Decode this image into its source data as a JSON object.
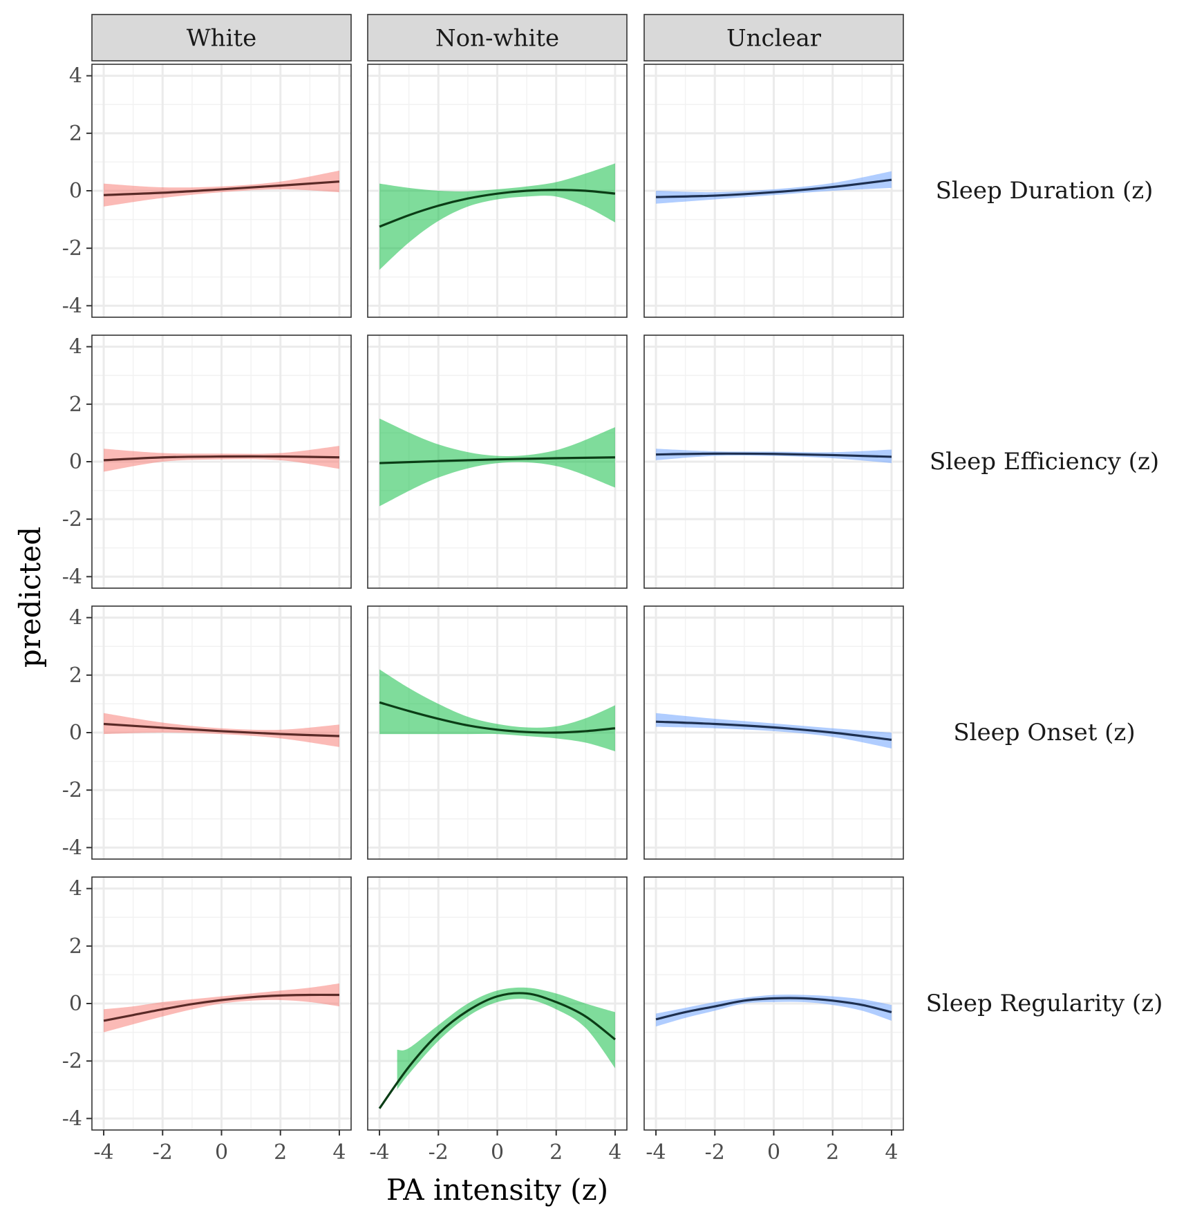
{
  "chart_data": {
    "type": "line",
    "xlabel": "PA intensity (z)",
    "ylabel": "predicted",
    "xlim": [
      -4.4,
      4.4
    ],
    "ylim": [
      -4.4,
      4.4
    ],
    "xticks": [
      -4,
      -2,
      0,
      2,
      4
    ],
    "yticks": [
      -4,
      -2,
      0,
      2,
      4
    ],
    "grid": true,
    "columns": [
      {
        "label": "White",
        "color": "#F8766D",
        "line_color": "#5a2a27"
      },
      {
        "label": "Non-white",
        "color": "#00BA38",
        "line_color": "#0b3d16"
      },
      {
        "label": "Unclear",
        "color": "#619CFF",
        "line_color": "#1e3050"
      }
    ],
    "rows": [
      "Sleep Duration (z)",
      "Sleep Efficiency (z)",
      "Sleep Onset (z)",
      "Sleep Regularity (z)"
    ],
    "panels": [
      [
        {
          "x": [
            -4,
            -2,
            0,
            2,
            4
          ],
          "y": [
            -0.15,
            -0.07,
            0.05,
            0.18,
            0.32
          ],
          "lower": [
            -0.55,
            -0.25,
            -0.05,
            0.05,
            -0.05
          ],
          "upper": [
            0.25,
            0.12,
            0.15,
            0.32,
            0.7
          ]
        },
        {
          "x": [
            -4,
            -3,
            -2,
            -1,
            0,
            1,
            2,
            3,
            4
          ],
          "y": [
            -1.25,
            -0.85,
            -0.52,
            -0.27,
            -0.1,
            0.0,
            0.03,
            0.0,
            -0.1
          ],
          "lower": [
            -2.75,
            -1.8,
            -1.05,
            -0.55,
            -0.3,
            -0.2,
            -0.2,
            -0.55,
            -1.1
          ],
          "upper": [
            0.25,
            0.1,
            0.0,
            -0.02,
            0.05,
            0.15,
            0.3,
            0.6,
            0.95
          ],
          "ci_x_start": -4
        },
        {
          "x": [
            -4,
            -2,
            0,
            2,
            4
          ],
          "y": [
            -0.22,
            -0.17,
            -0.05,
            0.13,
            0.38
          ],
          "lower": [
            -0.45,
            -0.3,
            -0.15,
            0.0,
            0.1
          ],
          "upper": [
            0.0,
            -0.05,
            0.05,
            0.27,
            0.68
          ]
        }
      ],
      [
        {
          "x": [
            -4,
            -2,
            0,
            2,
            4
          ],
          "y": [
            0.05,
            0.15,
            0.18,
            0.18,
            0.15
          ],
          "lower": [
            -0.35,
            0.0,
            0.08,
            0.05,
            -0.25
          ],
          "upper": [
            0.45,
            0.3,
            0.28,
            0.3,
            0.55
          ]
        },
        {
          "x": [
            -4,
            -2,
            0,
            2,
            4
          ],
          "y": [
            -0.05,
            0.02,
            0.08,
            0.12,
            0.15
          ],
          "lower": [
            -1.55,
            -0.55,
            -0.05,
            -0.15,
            -0.9
          ],
          "upper": [
            1.5,
            0.6,
            0.2,
            0.4,
            1.2
          ]
        },
        {
          "x": [
            -4,
            -2,
            0,
            2,
            4
          ],
          "y": [
            0.25,
            0.28,
            0.27,
            0.23,
            0.17
          ],
          "lower": [
            0.05,
            0.2,
            0.2,
            0.12,
            -0.05
          ],
          "upper": [
            0.45,
            0.36,
            0.35,
            0.33,
            0.42
          ]
        }
      ],
      [
        {
          "x": [
            -4,
            -2,
            0,
            2,
            4
          ],
          "y": [
            0.3,
            0.17,
            0.05,
            -0.05,
            -0.12
          ],
          "lower": [
            -0.05,
            0.0,
            -0.05,
            -0.2,
            -0.5
          ],
          "upper": [
            0.68,
            0.35,
            0.15,
            0.1,
            0.28
          ]
        },
        {
          "x": [
            -4,
            -3,
            -2,
            -1,
            0,
            1,
            2,
            3,
            4
          ],
          "y": [
            1.05,
            0.75,
            0.48,
            0.25,
            0.1,
            0.02,
            0.0,
            0.05,
            0.15
          ],
          "lower": [
            -0.05,
            -0.05,
            -0.05,
            -0.05,
            -0.05,
            -0.12,
            -0.2,
            -0.35,
            -0.65
          ],
          "upper": [
            2.2,
            1.55,
            1.0,
            0.55,
            0.3,
            0.18,
            0.22,
            0.5,
            0.95
          ],
          "ci_x_start": -4
        },
        {
          "x": [
            -4,
            -2,
            0,
            2,
            4
          ],
          "y": [
            0.38,
            0.3,
            0.18,
            0.0,
            -0.25
          ],
          "lower": [
            0.2,
            0.15,
            0.05,
            -0.15,
            -0.55
          ],
          "upper": [
            0.68,
            0.48,
            0.32,
            0.15,
            0.0
          ]
        }
      ],
      [
        {
          "x": [
            -4,
            -3,
            -2,
            -1,
            0,
            1,
            2,
            3,
            4
          ],
          "y": [
            -0.6,
            -0.4,
            -0.2,
            -0.02,
            0.12,
            0.22,
            0.28,
            0.3,
            0.3
          ],
          "lower": [
            -1.0,
            -0.72,
            -0.45,
            -0.2,
            0.0,
            0.1,
            0.12,
            0.05,
            -0.1
          ],
          "upper": [
            -0.2,
            -0.1,
            0.05,
            0.15,
            0.25,
            0.35,
            0.45,
            0.55,
            0.7
          ]
        },
        {
          "x": [
            -4,
            -3,
            -2,
            -1,
            0,
            1,
            2,
            3,
            4
          ],
          "y": [
            -3.65,
            -2.2,
            -1.05,
            -0.25,
            0.25,
            0.35,
            0.05,
            -0.45,
            -1.25
          ],
          "lower": [
            -3.8,
            -2.45,
            -1.3,
            -0.45,
            0.05,
            0.15,
            -0.2,
            -0.85,
            -2.25
          ],
          "upper": [
            -1.7,
            -1.55,
            -0.75,
            0.0,
            0.45,
            0.55,
            0.35,
            0.0,
            -0.3
          ],
          "ci_x_start": -3.4
        },
        {
          "x": [
            -4,
            -3,
            -2,
            -1,
            0,
            1,
            2,
            3,
            4
          ],
          "y": [
            -0.55,
            -0.3,
            -0.1,
            0.1,
            0.18,
            0.18,
            0.1,
            -0.05,
            -0.3
          ],
          "lower": [
            -0.8,
            -0.5,
            -0.25,
            0.0,
            0.05,
            0.05,
            -0.05,
            -0.25,
            -0.6
          ],
          "upper": [
            -0.35,
            -0.15,
            0.05,
            0.2,
            0.3,
            0.3,
            0.25,
            0.15,
            -0.05
          ]
        }
      ]
    ]
  }
}
